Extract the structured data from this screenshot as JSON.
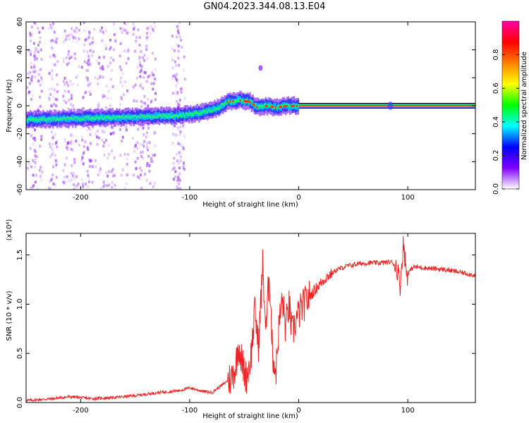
{
  "figure": {
    "title": "GN04.2023.344.08.13.E04"
  },
  "chart_data": [
    {
      "type": "heatmap",
      "title": "GN04.2023.344.08.13.E04",
      "xlabel": "Height of straight line (km)",
      "ylabel": "Frequency (Hz)",
      "xlim": [
        -250,
        162
      ],
      "ylim": [
        -60,
        60
      ],
      "x_ticks": [
        -200,
        -100,
        0,
        100
      ],
      "y_ticks": [
        -60,
        -40,
        -20,
        0,
        20,
        40,
        60
      ],
      "ridge_center": [
        {
          "x": -250,
          "y": -10
        },
        {
          "x": -200,
          "y": -9
        },
        {
          "x": -150,
          "y": -8
        },
        {
          "x": -110,
          "y": -7
        },
        {
          "x": -90,
          "y": -5
        },
        {
          "x": -75,
          "y": -2
        },
        {
          "x": -65,
          "y": 3
        },
        {
          "x": -55,
          "y": 4
        },
        {
          "x": -45,
          "y": 3
        },
        {
          "x": -38,
          "y": -1
        },
        {
          "x": -30,
          "y": 0
        },
        {
          "x": -20,
          "y": -1
        },
        {
          "x": -10,
          "y": 0
        },
        {
          "x": 0,
          "y": 0
        },
        {
          "x": 162,
          "y": 0
        }
      ],
      "colorbar": {
        "label": "Normalized spectral amplitude",
        "ticks": [
          0.0,
          0.2,
          0.4,
          0.6,
          0.8
        ],
        "tick_labels": [
          "0.0",
          "0.2",
          "0.4",
          "0.6",
          "0.8"
        ],
        "colors": [
          "#ffffff",
          "#8000ff",
          "#0000ff",
          "#00ffff",
          "#00ff00",
          "#ffff00",
          "#ff8000",
          "#ff0000",
          "#ff00aa"
        ]
      },
      "grid": false
    },
    {
      "type": "line",
      "xlabel": "Height of straight line (km)",
      "ylabel": "SNR (10 * v/v)",
      "y_multiplier": "(x10⁴)",
      "xlim": [
        -250,
        162
      ],
      "ylim": [
        0.0,
        1.72
      ],
      "x_ticks": [
        -200,
        -100,
        0,
        100
      ],
      "y_ticks": [
        0.0,
        0.5,
        1.0,
        1.5
      ],
      "y_tick_labels": [
        "0.0",
        "0.5",
        "1.0",
        "1.5"
      ],
      "line_color": "#ee2222",
      "series": [
        {
          "values": [
            {
              "x": -250,
              "y": 0.02
            },
            {
              "x": -225,
              "y": 0.04
            },
            {
              "x": -210,
              "y": 0.06
            },
            {
              "x": -190,
              "y": 0.04
            },
            {
              "x": -170,
              "y": 0.05
            },
            {
              "x": -150,
              "y": 0.07
            },
            {
              "x": -130,
              "y": 0.1
            },
            {
              "x": -110,
              "y": 0.12
            },
            {
              "x": -100,
              "y": 0.15
            },
            {
              "x": -90,
              "y": 0.12
            },
            {
              "x": -80,
              "y": 0.1
            },
            {
              "x": -70,
              "y": 0.18
            },
            {
              "x": -62,
              "y": 0.25
            },
            {
              "x": -58,
              "y": 0.35
            },
            {
              "x": -55,
              "y": 0.6
            },
            {
              "x": -52,
              "y": 0.4
            },
            {
              "x": -48,
              "y": 0.25
            },
            {
              "x": -44,
              "y": 0.45
            },
            {
              "x": -40,
              "y": 0.95
            },
            {
              "x": -37,
              "y": 0.55
            },
            {
              "x": -33,
              "y": 1.4
            },
            {
              "x": -30,
              "y": 0.7
            },
            {
              "x": -27,
              "y": 1.35
            },
            {
              "x": -24,
              "y": 0.5
            },
            {
              "x": -21,
              "y": 0.3
            },
            {
              "x": -18,
              "y": 0.8
            },
            {
              "x": -15,
              "y": 1.05
            },
            {
              "x": -12,
              "y": 0.75
            },
            {
              "x": -9,
              "y": 1.0
            },
            {
              "x": -6,
              "y": 0.7
            },
            {
              "x": -2,
              "y": 0.85
            },
            {
              "x": 2,
              "y": 0.95
            },
            {
              "x": 8,
              "y": 1.05
            },
            {
              "x": 15,
              "y": 1.15
            },
            {
              "x": 25,
              "y": 1.27
            },
            {
              "x": 35,
              "y": 1.35
            },
            {
              "x": 45,
              "y": 1.39
            },
            {
              "x": 55,
              "y": 1.41
            },
            {
              "x": 65,
              "y": 1.42
            },
            {
              "x": 75,
              "y": 1.42
            },
            {
              "x": 85,
              "y": 1.43
            },
            {
              "x": 90,
              "y": 1.38
            },
            {
              "x": 93,
              "y": 1.2
            },
            {
              "x": 96,
              "y": 1.62
            },
            {
              "x": 99,
              "y": 1.3
            },
            {
              "x": 105,
              "y": 1.38
            },
            {
              "x": 115,
              "y": 1.37
            },
            {
              "x": 125,
              "y": 1.36
            },
            {
              "x": 135,
              "y": 1.35
            },
            {
              "x": 145,
              "y": 1.33
            },
            {
              "x": 155,
              "y": 1.31
            },
            {
              "x": 162,
              "y": 1.29
            }
          ]
        }
      ],
      "grid": false
    }
  ]
}
